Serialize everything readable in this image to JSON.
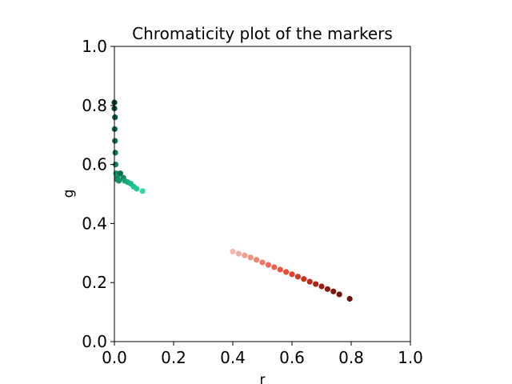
{
  "chart_data": {
    "type": "scatter",
    "title": "Chromaticity plot of the markers",
    "xlabel": "r",
    "ylabel": "g",
    "xlim": [
      0.0,
      1.0
    ],
    "ylim": [
      0.0,
      1.0
    ],
    "xticks": [
      0.0,
      0.2,
      0.4,
      0.6,
      0.8,
      1.0
    ],
    "yticks": [
      0.0,
      0.2,
      0.4,
      0.6,
      0.8,
      1.0
    ],
    "xtick_labels": [
      "0.0",
      "0.2",
      "0.4",
      "0.6",
      "0.8",
      "1.0"
    ],
    "ytick_labels": [
      "0.0",
      "0.2",
      "0.4",
      "0.6",
      "0.8",
      "1.0"
    ],
    "grid": false,
    "series": [
      {
        "points": [
          {
            "x": 0.0,
            "y": 0.81,
            "color": "#0b3d2c"
          },
          {
            "x": 0.0,
            "y": 0.79,
            "color": "#0b4a35"
          },
          {
            "x": 0.002,
            "y": 0.76,
            "color": "#0c5a40"
          },
          {
            "x": 0.001,
            "y": 0.72,
            "color": "#0d6547"
          },
          {
            "x": 0.002,
            "y": 0.68,
            "color": "#0f7050"
          },
          {
            "x": 0.003,
            "y": 0.64,
            "color": "#117a57"
          },
          {
            "x": 0.004,
            "y": 0.6,
            "color": "#12835e"
          },
          {
            "x": 0.006,
            "y": 0.57,
            "color": "#148c65"
          },
          {
            "x": 0.01,
            "y": 0.56,
            "color": "#16966c"
          },
          {
            "x": 0.02,
            "y": 0.57,
            "color": "#0f6e4e"
          },
          {
            "x": 0.03,
            "y": 0.555,
            "color": "#138a61"
          },
          {
            "x": 0.035,
            "y": 0.545,
            "color": "#17a070"
          },
          {
            "x": 0.045,
            "y": 0.54,
            "color": "#1aab78"
          },
          {
            "x": 0.055,
            "y": 0.535,
            "color": "#1db783"
          },
          {
            "x": 0.065,
            "y": 0.525,
            "color": "#20c28b"
          },
          {
            "x": 0.075,
            "y": 0.518,
            "color": "#27cc95"
          },
          {
            "x": 0.095,
            "y": 0.51,
            "color": "#2fdba3"
          },
          {
            "x": 0.008,
            "y": 0.55,
            "color": "#13875f"
          },
          {
            "x": 0.015,
            "y": 0.545,
            "color": "#159064"
          },
          {
            "x": 0.4,
            "y": 0.305,
            "color": "#f6b8ad"
          },
          {
            "x": 0.42,
            "y": 0.298,
            "color": "#f5ab9f"
          },
          {
            "x": 0.44,
            "y": 0.292,
            "color": "#f49e90"
          },
          {
            "x": 0.46,
            "y": 0.285,
            "color": "#f39182"
          },
          {
            "x": 0.48,
            "y": 0.277,
            "color": "#f28474"
          },
          {
            "x": 0.5,
            "y": 0.268,
            "color": "#f17766"
          },
          {
            "x": 0.52,
            "y": 0.26,
            "color": "#f06a58"
          },
          {
            "x": 0.54,
            "y": 0.252,
            "color": "#ef5f4c"
          },
          {
            "x": 0.56,
            "y": 0.244,
            "color": "#ee5541"
          },
          {
            "x": 0.58,
            "y": 0.236,
            "color": "#ec4b37"
          },
          {
            "x": 0.6,
            "y": 0.228,
            "color": "#e4422e"
          },
          {
            "x": 0.62,
            "y": 0.22,
            "color": "#d83a27"
          },
          {
            "x": 0.64,
            "y": 0.212,
            "color": "#c93221"
          },
          {
            "x": 0.66,
            "y": 0.203,
            "color": "#ba2b1c"
          },
          {
            "x": 0.68,
            "y": 0.195,
            "color": "#ab2517"
          },
          {
            "x": 0.7,
            "y": 0.187,
            "color": "#9c2013"
          },
          {
            "x": 0.72,
            "y": 0.178,
            "color": "#8e1c10"
          },
          {
            "x": 0.74,
            "y": 0.17,
            "color": "#80180d"
          },
          {
            "x": 0.76,
            "y": 0.16,
            "color": "#73150b"
          },
          {
            "x": 0.795,
            "y": 0.145,
            "color": "#6b1309"
          }
        ]
      }
    ]
  }
}
